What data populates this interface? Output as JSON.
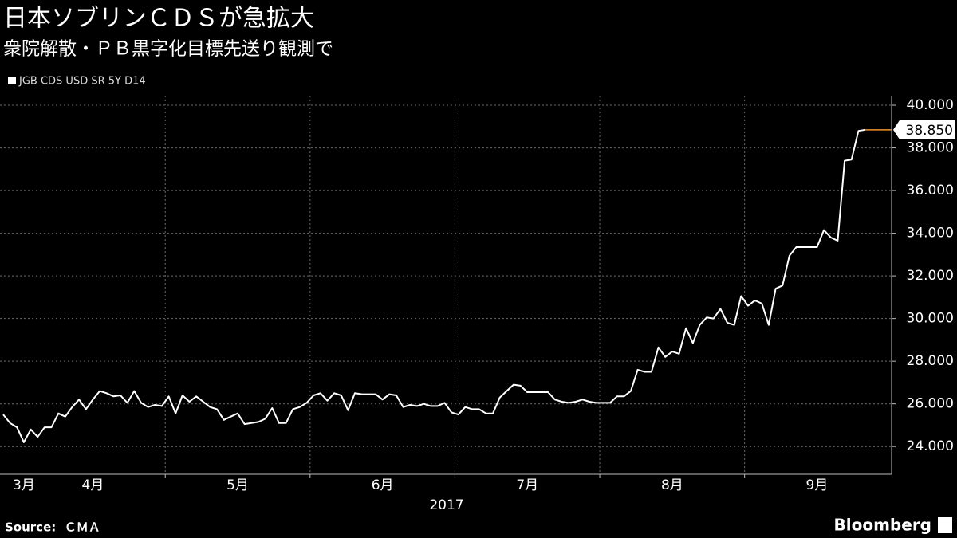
{
  "chart_data": {
    "type": "line",
    "title": "日本ソブリンＣＤＳが急拡大",
    "subtitle": "衆院解散・ＰＢ黒字化目標先送り観測で",
    "x_axis_label": "2017",
    "source": "Source:  ＣＭＡ",
    "brand": "Bloomberg",
    "categories": [
      null,
      null,
      null,
      "3月",
      null,
      null,
      null,
      null,
      null,
      null,
      null,
      null,
      null,
      "4月",
      null,
      null,
      null,
      null,
      null,
      null,
      null,
      null,
      null,
      null,
      null,
      null,
      null,
      null,
      null,
      null,
      null,
      null,
      null,
      null,
      "5月",
      null,
      null,
      null,
      null,
      null,
      null,
      null,
      null,
      null,
      null,
      null,
      null,
      null,
      null,
      null,
      null,
      null,
      null,
      null,
      null,
      "6月",
      null,
      null,
      null,
      null,
      null,
      null,
      null,
      null,
      null,
      null,
      null,
      null,
      null,
      null,
      null,
      null,
      null,
      null,
      null,
      null,
      "7月",
      null,
      null,
      null,
      null,
      null,
      null,
      null,
      null,
      null,
      null,
      null,
      null,
      null,
      null,
      null,
      null,
      null,
      null,
      null,
      null,
      "8月",
      null,
      null,
      null,
      null,
      null,
      null,
      null,
      null,
      null,
      null,
      null,
      null,
      null,
      null,
      null,
      null,
      null,
      null,
      null,
      null,
      "9月",
      null,
      null,
      null,
      null,
      null,
      null,
      null
    ],
    "series": [
      {
        "name": "JGB CDS USD SR 5Y D14",
        "color": "#ffffff",
        "values": [
          25.5,
          25.1,
          24.9,
          24.2,
          24.8,
          24.45,
          24.9,
          24.9,
          25.55,
          25.4,
          25.85,
          26.2,
          25.75,
          26.2,
          26.6,
          26.5,
          26.35,
          26.4,
          26.05,
          26.6,
          26.05,
          25.85,
          25.95,
          25.9,
          26.35,
          25.55,
          26.4,
          26.1,
          26.35,
          26.1,
          25.85,
          25.75,
          25.25,
          25.4,
          25.55,
          25.05,
          25.1,
          25.15,
          25.3,
          25.8,
          25.1,
          25.1,
          25.75,
          25.85,
          26.05,
          26.4,
          26.5,
          26.15,
          26.5,
          26.4,
          25.7,
          26.5,
          26.45,
          26.45,
          26.45,
          26.2,
          26.45,
          26.4,
          25.85,
          25.95,
          25.9,
          26.0,
          25.9,
          25.9,
          26.05,
          25.6,
          25.5,
          25.85,
          25.75,
          25.75,
          25.55,
          25.55,
          26.3,
          26.6,
          26.9,
          26.85,
          26.55,
          26.55,
          26.55,
          26.55,
          26.2,
          26.1,
          26.05,
          26.1,
          26.2,
          26.1,
          26.05,
          26.05,
          26.05,
          26.35,
          26.35,
          26.6,
          27.6,
          27.5,
          27.5,
          28.65,
          28.2,
          28.45,
          28.35,
          29.55,
          28.85,
          29.7,
          30.05,
          30.0,
          30.45,
          29.8,
          29.7,
          31.05,
          30.6,
          30.85,
          30.7,
          29.7,
          31.4,
          31.55,
          32.95,
          33.35,
          33.35,
          33.35,
          33.35,
          34.15,
          33.8,
          33.65,
          37.4,
          37.45,
          38.8,
          38.85
        ],
        "value_labels": [
          null,
          null,
          null,
          null,
          null,
          null,
          null,
          null,
          null,
          null,
          null,
          null,
          null,
          null,
          null,
          null,
          null,
          null,
          null,
          null,
          null,
          null,
          null,
          null,
          null,
          null,
          null,
          null,
          null,
          null,
          null,
          null,
          null,
          null,
          null,
          null,
          null,
          null,
          null,
          null,
          null,
          null,
          null,
          null,
          null,
          null,
          null,
          null,
          null,
          null,
          null,
          null,
          null,
          null,
          null,
          null,
          null,
          null,
          null,
          null,
          null,
          null,
          null,
          null,
          null,
          null,
          null,
          null,
          null,
          null,
          null,
          null,
          null,
          null,
          null,
          null,
          null,
          null,
          null,
          null,
          null,
          null,
          null,
          null,
          null,
          null,
          null,
          null,
          null,
          null,
          null,
          null,
          null,
          null,
          null,
          null,
          null,
          null,
          null,
          null,
          null,
          null,
          null,
          null,
          null,
          null,
          null,
          null,
          null,
          null,
          null,
          null,
          null,
          null,
          null,
          null,
          null,
          null,
          null,
          null,
          null,
          null,
          null,
          null,
          null,
          "38.850"
        ]
      }
    ],
    "ylim": [
      22.7,
      40.45
    ],
    "yticks": [
      {
        "value": 24,
        "label": "24.000"
      },
      {
        "value": 26,
        "label": "26.000"
      },
      {
        "value": 28,
        "label": "28.000"
      },
      {
        "value": 30,
        "label": "30.000"
      },
      {
        "value": 32,
        "label": "32.000"
      },
      {
        "value": 34,
        "label": "34.000"
      },
      {
        "value": 36,
        "label": "36.000"
      },
      {
        "value": 38,
        "label": "38.000"
      },
      {
        "value": 40,
        "label": "40.000"
      }
    ],
    "grid": true
  }
}
